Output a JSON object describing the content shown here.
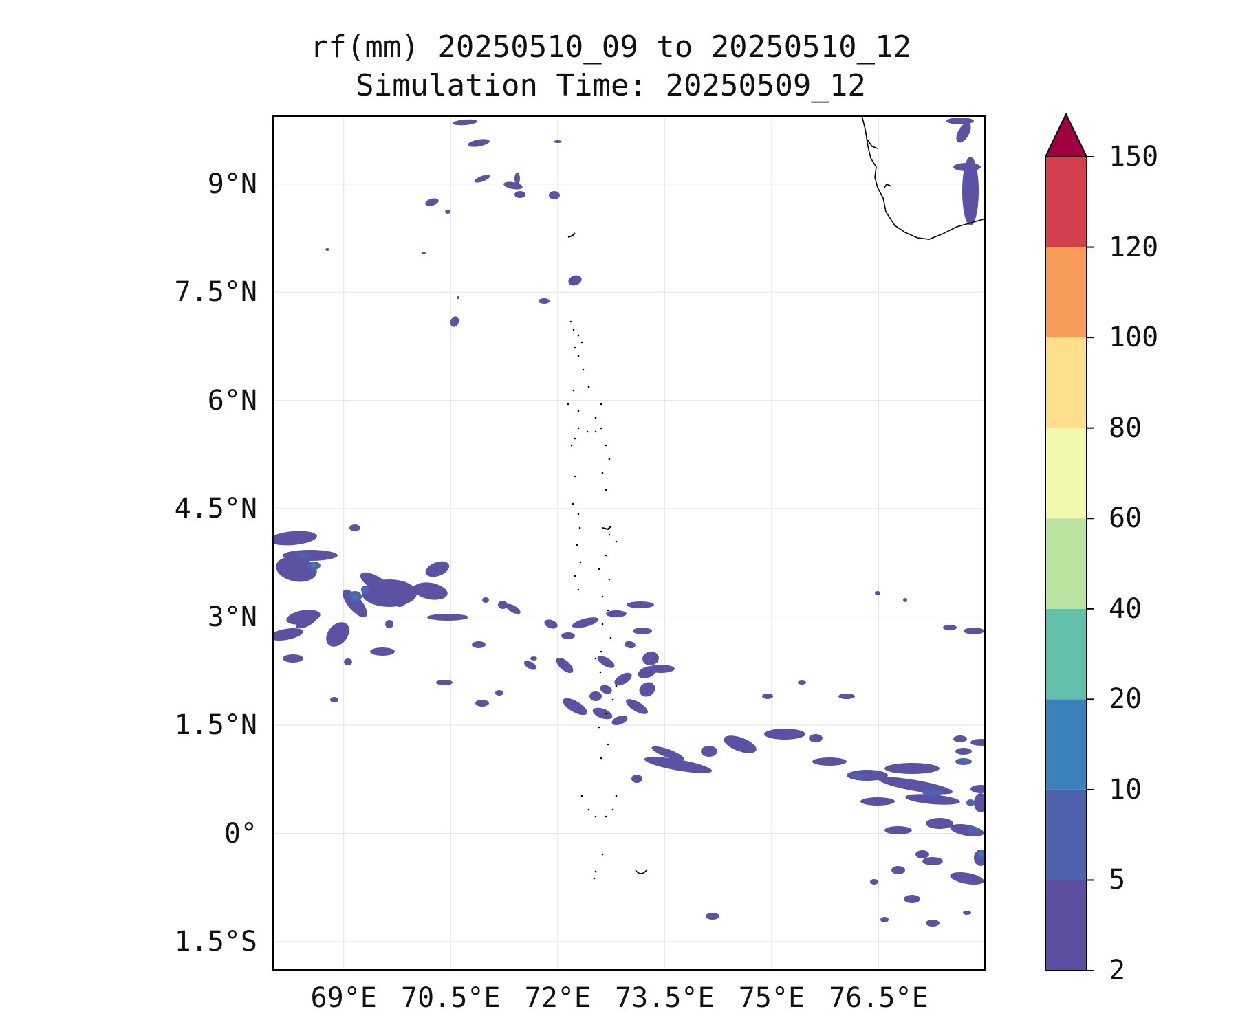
{
  "title": {
    "line1": "rf(mm) 20250510_09 to 20250510_12",
    "line2": "Simulation Time: 20250509_12"
  },
  "map": {
    "lon_range": [
      68.0,
      78.0
    ],
    "lat_range": [
      -1.9,
      9.95
    ],
    "gridlines": true,
    "lat_ticks": [
      {
        "value": 9.0,
        "label": "9°N"
      },
      {
        "value": 7.5,
        "label": "7.5°N"
      },
      {
        "value": 6.0,
        "label": "6°N"
      },
      {
        "value": 4.5,
        "label": "4.5°N"
      },
      {
        "value": 3.0,
        "label": "3°N"
      },
      {
        "value": 1.5,
        "label": "1.5°N"
      },
      {
        "value": 0.0,
        "label": "0°"
      },
      {
        "value": -1.5,
        "label": "1.5°S"
      }
    ],
    "lon_ticks": [
      {
        "value": 69.0,
        "label": "69°E"
      },
      {
        "value": 70.5,
        "label": "70.5°E"
      },
      {
        "value": 72.0,
        "label": "72°E"
      },
      {
        "value": 73.5,
        "label": "73.5°E"
      },
      {
        "value": 75.0,
        "label": "75°E"
      },
      {
        "value": 76.5,
        "label": "76.5°E"
      }
    ],
    "field_color": "#5b52a3",
    "field_color_dark": "#4e63ad",
    "field_color_accent": "#3a80b9"
  },
  "colorbar": {
    "extend": "max",
    "levels": [
      2,
      5,
      10,
      20,
      40,
      60,
      80,
      100,
      120,
      150
    ],
    "labels": [
      "2",
      "5",
      "10",
      "20",
      "40",
      "60",
      "80",
      "100",
      "120",
      "150"
    ],
    "colors": [
      "#5e4fa2",
      "#4f62ad",
      "#3b82bb",
      "#62bfa9",
      "#bde3a1",
      "#f2f9ac",
      "#fddf8c",
      "#f99c5a",
      "#d43f4e"
    ],
    "extend_color": "#9e0142"
  }
}
